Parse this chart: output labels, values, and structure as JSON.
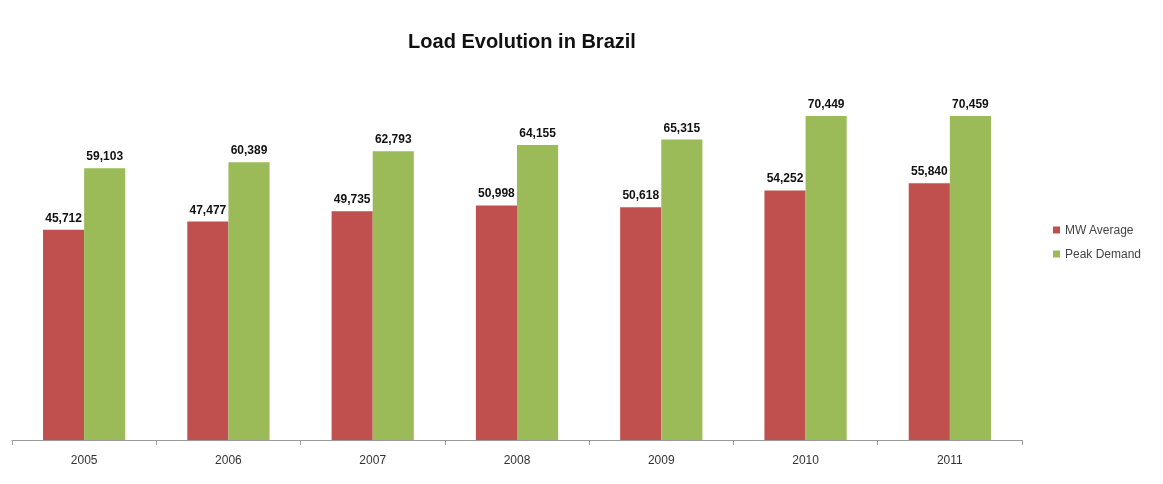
{
  "chart_data": {
    "type": "bar",
    "title": "Load Evolution in Brazil",
    "categories": [
      "2005",
      "2006",
      "2007",
      "2008",
      "2009",
      "2010",
      "2011"
    ],
    "series": [
      {
        "name": "MW Average",
        "color": "#c0504d",
        "values": [
          45712,
          47477,
          49735,
          50998,
          50618,
          54252,
          55840
        ],
        "value_labels": [
          "45,712",
          "47,477",
          "49,735",
          "50,998",
          "50,618",
          "54,252",
          "55,840"
        ]
      },
      {
        "name": "Peak Demand",
        "color": "#9bbb59",
        "values": [
          59103,
          60389,
          62793,
          64155,
          65315,
          70449,
          70459
        ],
        "value_labels": [
          "59,103",
          "60,389",
          "62,793",
          "64,155",
          "65,315",
          "70,449",
          "70,459"
        ]
      }
    ],
    "legend": "right",
    "grid": false,
    "tick_labels": "x"
  }
}
